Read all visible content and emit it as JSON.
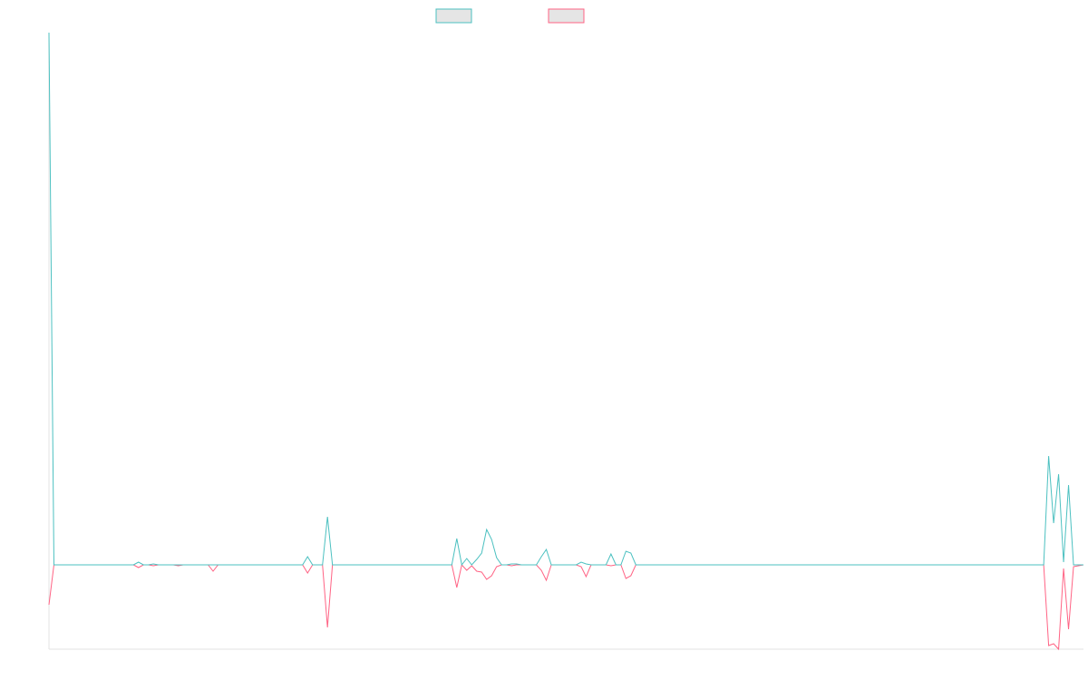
{
  "chart_data": {
    "type": "line",
    "title": "",
    "xlabel": "",
    "ylabel": "",
    "x_count": 209,
    "ylim": [
      -93,
      587
    ],
    "grid": false,
    "legend_placement": "top-center",
    "series": [
      {
        "name": "",
        "color": "#4BC0C0",
        "default_value": 0,
        "points": [
          [
            0,
            587
          ],
          [
            18,
            3
          ],
          [
            21,
            1
          ],
          [
            52,
            9
          ],
          [
            56,
            53
          ],
          [
            82,
            29
          ],
          [
            84,
            7
          ],
          [
            86,
            6
          ],
          [
            87,
            13
          ],
          [
            88,
            39
          ],
          [
            89,
            28
          ],
          [
            90,
            8
          ],
          [
            93,
            1
          ],
          [
            94,
            1
          ],
          [
            99,
            9
          ],
          [
            100,
            17
          ],
          [
            107,
            3
          ],
          [
            108,
            1
          ],
          [
            113,
            12
          ],
          [
            116,
            15
          ],
          [
            117,
            13
          ],
          [
            201,
            120
          ],
          [
            202,
            46
          ],
          [
            203,
            100
          ],
          [
            204,
            3
          ],
          [
            205,
            88
          ]
        ]
      },
      {
        "name": "",
        "color": "#FF6384",
        "default_value": 0,
        "points": [
          [
            0,
            -44
          ],
          [
            18,
            -3
          ],
          [
            21,
            -1
          ],
          [
            26,
            -1
          ],
          [
            33,
            -7
          ],
          [
            52,
            -9
          ],
          [
            56,
            -69
          ],
          [
            82,
            -25
          ],
          [
            84,
            -6
          ],
          [
            85,
            -1
          ],
          [
            86,
            -7
          ],
          [
            87,
            -8
          ],
          [
            88,
            -16
          ],
          [
            89,
            -12
          ],
          [
            90,
            -2
          ],
          [
            93,
            -1
          ],
          [
            99,
            -6
          ],
          [
            100,
            -17
          ],
          [
            107,
            -2
          ],
          [
            108,
            -13
          ],
          [
            113,
            -1
          ],
          [
            116,
            -15
          ],
          [
            117,
            -12
          ],
          [
            201,
            -89
          ],
          [
            202,
            -87
          ],
          [
            203,
            -93
          ],
          [
            204,
            -4
          ],
          [
            205,
            -71
          ],
          [
            206,
            -2
          ],
          [
            207,
            -1
          ]
        ]
      }
    ]
  }
}
